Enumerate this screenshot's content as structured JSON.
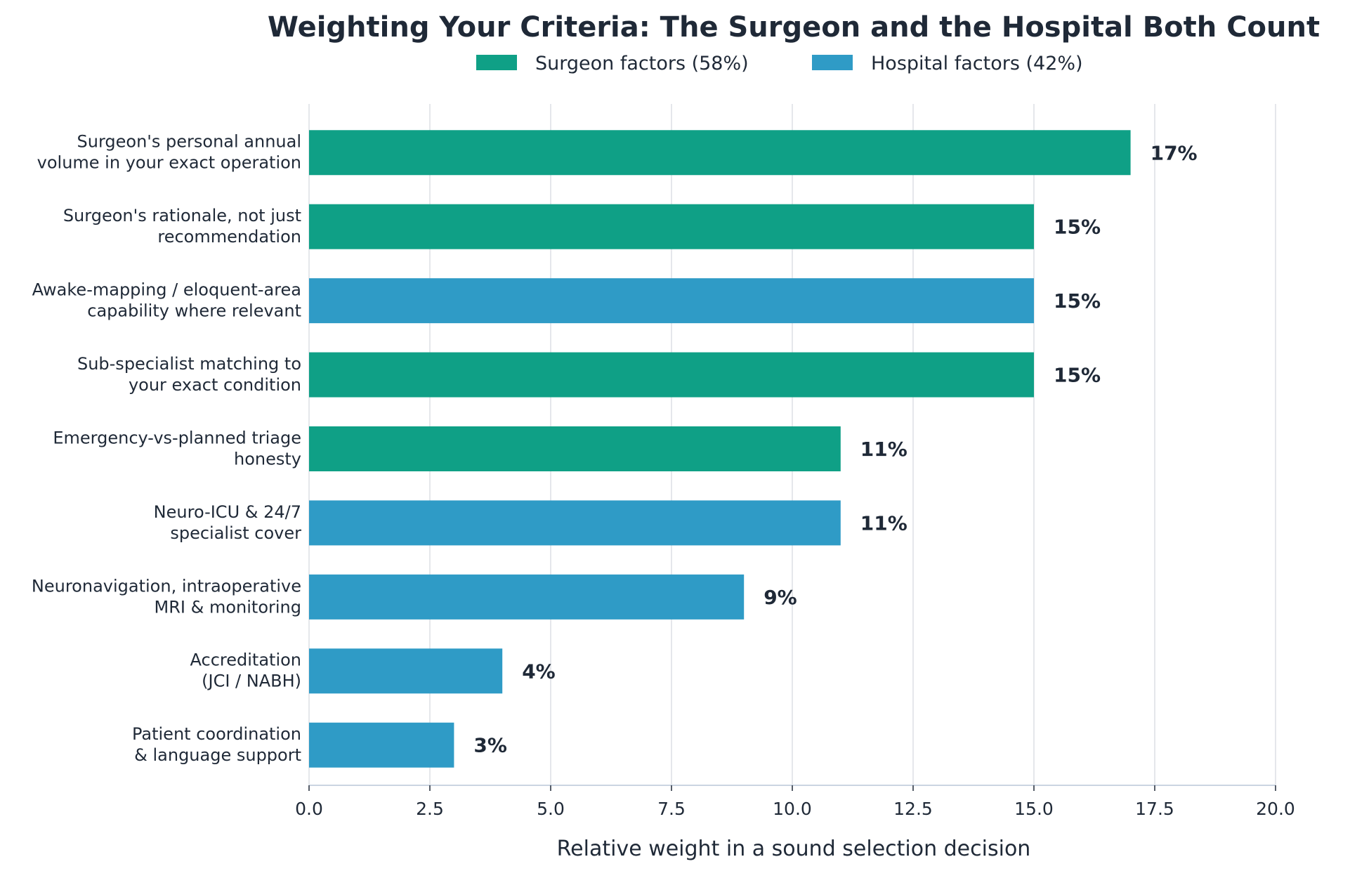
{
  "chart_data": {
    "type": "bar",
    "orientation": "horizontal",
    "title": "Weighting Your Criteria: The Surgeon and the Hospital Both Count",
    "xlabel": "Relative weight in a sound selection decision",
    "ylabel": "",
    "xlim": [
      0,
      20
    ],
    "xticks": [
      "0.0",
      "2.5",
      "5.0",
      "7.5",
      "10.0",
      "12.5",
      "15.0",
      "17.5",
      "20.0"
    ],
    "xtick_values": [
      0,
      2.5,
      5,
      7.5,
      10,
      12.5,
      15,
      17.5,
      20
    ],
    "grid": "vertical",
    "legend_position": "top-center",
    "legend": [
      {
        "label": "Surgeon factors  (58%)",
        "color": "#0fa086"
      },
      {
        "label": "Hospital factors  (42%)",
        "color": "#2f9bc6"
      }
    ],
    "bars": [
      {
        "label_lines": [
          "Surgeon's personal annual",
          "volume in your exact operation"
        ],
        "value": 17,
        "value_label": "17%",
        "group": "surgeon"
      },
      {
        "label_lines": [
          "Surgeon's rationale, not just",
          "recommendation"
        ],
        "value": 15,
        "value_label": "15%",
        "group": "surgeon"
      },
      {
        "label_lines": [
          "Awake-mapping / eloquent-area",
          "capability where relevant"
        ],
        "value": 15,
        "value_label": "15%",
        "group": "hospital"
      },
      {
        "label_lines": [
          "Sub-specialist matching to",
          "your exact condition"
        ],
        "value": 15,
        "value_label": "15%",
        "group": "surgeon"
      },
      {
        "label_lines": [
          "Emergency-vs-planned triage",
          "honesty"
        ],
        "value": 11,
        "value_label": "11%",
        "group": "surgeon"
      },
      {
        "label_lines": [
          "Neuro-ICU & 24/7",
          "specialist cover"
        ],
        "value": 11,
        "value_label": "11%",
        "group": "hospital"
      },
      {
        "label_lines": [
          "Neuronavigation, intraoperative",
          "MRI & monitoring"
        ],
        "value": 9,
        "value_label": "9%",
        "group": "hospital"
      },
      {
        "label_lines": [
          "Accreditation",
          "(JCI / NABH)"
        ],
        "value": 4,
        "value_label": "4%",
        "group": "hospital"
      },
      {
        "label_lines": [
          "Patient coordination",
          "& language support"
        ],
        "value": 3,
        "value_label": "3%",
        "group": "hospital"
      }
    ],
    "colors": {
      "surgeon": "#0fa086",
      "hospital": "#2f9bc6"
    }
  }
}
